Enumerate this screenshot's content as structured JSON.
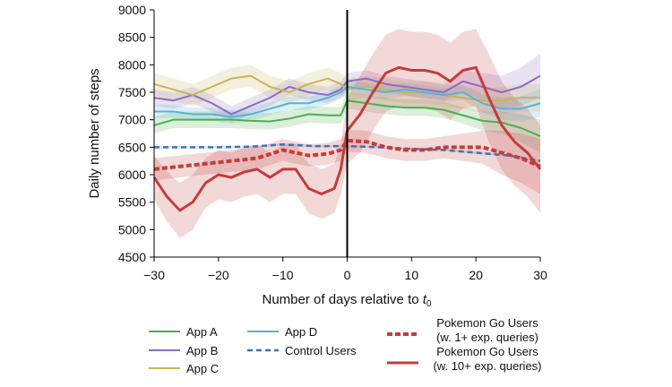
{
  "chart_data": {
    "type": "line",
    "title": "",
    "xlabel_prefix": "Number of days relative to ",
    "xlabel_var": "t",
    "xlabel_sub": "0",
    "ylabel": "Daily number of steps",
    "xlim": [
      -30,
      30
    ],
    "ylim": [
      4500,
      9000
    ],
    "xticks": [
      -30,
      -20,
      -10,
      0,
      10,
      20,
      30
    ],
    "xtick_labels": [
      "−30",
      "−20",
      "−10",
      "0",
      "10",
      "20",
      "30"
    ],
    "yticks": [
      4500,
      5000,
      5500,
      6000,
      6500,
      7000,
      7500,
      8000,
      8500,
      9000
    ],
    "ytick_labels": [
      "4500",
      "5000",
      "5500",
      "6000",
      "6500",
      "7000",
      "7500",
      "8000",
      "8500",
      "9000"
    ],
    "vline_x": 0,
    "grid": false,
    "legend_position": "bottom",
    "series": [
      {
        "name": "App A",
        "label_lines": [
          "App A"
        ],
        "color": "#4caf50",
        "style": "solid",
        "width": 2,
        "x": [
          -30,
          -27,
          -24,
          -21,
          -18,
          -15,
          -12,
          -9,
          -6,
          -3,
          -1,
          0,
          3,
          6,
          9,
          12,
          15,
          18,
          21,
          24,
          27,
          30
        ],
        "y": [
          6900,
          7000,
          7000,
          7000,
          7000,
          6980,
          6970,
          7020,
          7100,
          7080,
          7080,
          7350,
          7300,
          7250,
          7220,
          7220,
          7180,
          7080,
          6980,
          6950,
          6850,
          6700
        ],
        "band": [
          150,
          150,
          150,
          150,
          150,
          150,
          150,
          150,
          150,
          150,
          150,
          150,
          150,
          150,
          150,
          150,
          150,
          150,
          180,
          200,
          250,
          300
        ]
      },
      {
        "name": "App B",
        "label_lines": [
          "App B"
        ],
        "color": "#8c6cc1",
        "style": "solid",
        "width": 2,
        "x": [
          -30,
          -27,
          -24,
          -21,
          -18,
          -15,
          -12,
          -9,
          -6,
          -3,
          -1,
          0,
          3,
          6,
          9,
          12,
          15,
          18,
          21,
          24,
          27,
          30
        ],
        "y": [
          7400,
          7350,
          7450,
          7300,
          7100,
          7250,
          7400,
          7600,
          7500,
          7450,
          7550,
          7700,
          7750,
          7650,
          7600,
          7550,
          7500,
          7700,
          7600,
          7500,
          7600,
          7800
        ],
        "band": [
          150,
          150,
          150,
          150,
          150,
          150,
          150,
          150,
          150,
          150,
          150,
          150,
          150,
          150,
          150,
          150,
          150,
          200,
          250,
          300,
          350,
          400
        ]
      },
      {
        "name": "App C",
        "label_lines": [
          "App C"
        ],
        "color": "#c8b45a",
        "style": "solid",
        "width": 2,
        "x": [
          -30,
          -27,
          -24,
          -21,
          -18,
          -15,
          -12,
          -9,
          -6,
          -3,
          -1,
          0,
          3,
          6,
          9,
          12,
          15,
          18,
          21,
          24,
          27,
          30
        ],
        "y": [
          7650,
          7550,
          7450,
          7600,
          7750,
          7800,
          7600,
          7500,
          7650,
          7750,
          7650,
          7550,
          7600,
          7550,
          7500,
          7500,
          7450,
          7400,
          7350,
          7350,
          7400,
          7400
        ],
        "band": [
          200,
          200,
          200,
          200,
          200,
          200,
          200,
          200,
          200,
          200,
          200,
          200,
          200,
          200,
          200,
          200,
          200,
          200,
          220,
          250,
          250,
          250
        ]
      },
      {
        "name": "App D",
        "label_lines": [
          "App D"
        ],
        "color": "#5ab1d2",
        "style": "solid",
        "width": 2,
        "x": [
          -30,
          -27,
          -24,
          -21,
          -18,
          -15,
          -12,
          -9,
          -6,
          -3,
          -1,
          0,
          3,
          6,
          9,
          12,
          15,
          18,
          21,
          24,
          27,
          30
        ],
        "y": [
          7150,
          7150,
          7100,
          7100,
          7050,
          7100,
          7200,
          7300,
          7300,
          7400,
          7500,
          7600,
          7550,
          7500,
          7550,
          7500,
          7450,
          7500,
          7300,
          7200,
          7200,
          7300
        ],
        "band": [
          120,
          120,
          120,
          120,
          120,
          120,
          120,
          120,
          120,
          120,
          120,
          120,
          120,
          120,
          120,
          120,
          120,
          140,
          160,
          200,
          230,
          250
        ]
      },
      {
        "name": "Control Users",
        "label_lines": [
          "Control Users"
        ],
        "color": "#3a74b5",
        "style": "dashed",
        "width": 2.5,
        "x": [
          -30,
          -25,
          -20,
          -15,
          -10,
          -5,
          0,
          5,
          10,
          15,
          20,
          25,
          30
        ],
        "y": [
          6500,
          6500,
          6500,
          6510,
          6550,
          6520,
          6520,
          6500,
          6470,
          6450,
          6400,
          6350,
          6250
        ],
        "band": [
          20,
          20,
          20,
          20,
          20,
          20,
          20,
          20,
          20,
          20,
          20,
          20,
          20
        ]
      },
      {
        "name": "Pokemon Go Users (w. 1+ exp. queries)",
        "label_lines": [
          "Pokemon Go Users",
          "(w. 1+ exp. queries)"
        ],
        "color": "#c43c3c",
        "style": "dotted",
        "width": 4,
        "x": [
          -30,
          -26,
          -22,
          -18,
          -14,
          -10,
          -6,
          -3,
          -1,
          0,
          3,
          6,
          9,
          12,
          15,
          18,
          21,
          24,
          27,
          30
        ],
        "y": [
          6100,
          6150,
          6200,
          6250,
          6300,
          6450,
          6350,
          6380,
          6450,
          6620,
          6600,
          6500,
          6450,
          6450,
          6500,
          6500,
          6500,
          6400,
          6300,
          6150
        ],
        "band": [
          200,
          200,
          200,
          200,
          200,
          200,
          200,
          200,
          200,
          200,
          200,
          200,
          200,
          200,
          200,
          250,
          300,
          400,
          450,
          500
        ]
      },
      {
        "name": "Pokemon Go Users (w. 10+ exp. queries)",
        "label_lines": [
          "Pokemon Go Users",
          "(w. 10+ exp. queries)"
        ],
        "color": "#c43c3c",
        "style": "solid",
        "width": 3,
        "x": [
          -30,
          -28,
          -26,
          -24,
          -22,
          -20,
          -18,
          -16,
          -14,
          -12,
          -10,
          -8,
          -6,
          -4,
          -2,
          -1,
          0,
          2,
          4,
          6,
          8,
          10,
          12,
          14,
          16,
          18,
          20,
          22,
          24,
          26,
          28,
          30
        ],
        "y": [
          5950,
          5600,
          5350,
          5500,
          5850,
          6000,
          5950,
          6050,
          6100,
          5950,
          6100,
          6100,
          5750,
          5650,
          5750,
          6100,
          6800,
          7100,
          7500,
          7850,
          7950,
          7900,
          7900,
          7850,
          7700,
          7900,
          7950,
          7400,
          6900,
          6600,
          6400,
          6100
        ],
        "band": [
          400,
          450,
          500,
          500,
          450,
          450,
          450,
          450,
          450,
          450,
          450,
          450,
          450,
          450,
          450,
          450,
          600,
          700,
          700,
          700,
          700,
          700,
          700,
          700,
          700,
          700,
          700,
          800,
          800,
          800,
          800,
          800
        ]
      }
    ]
  }
}
